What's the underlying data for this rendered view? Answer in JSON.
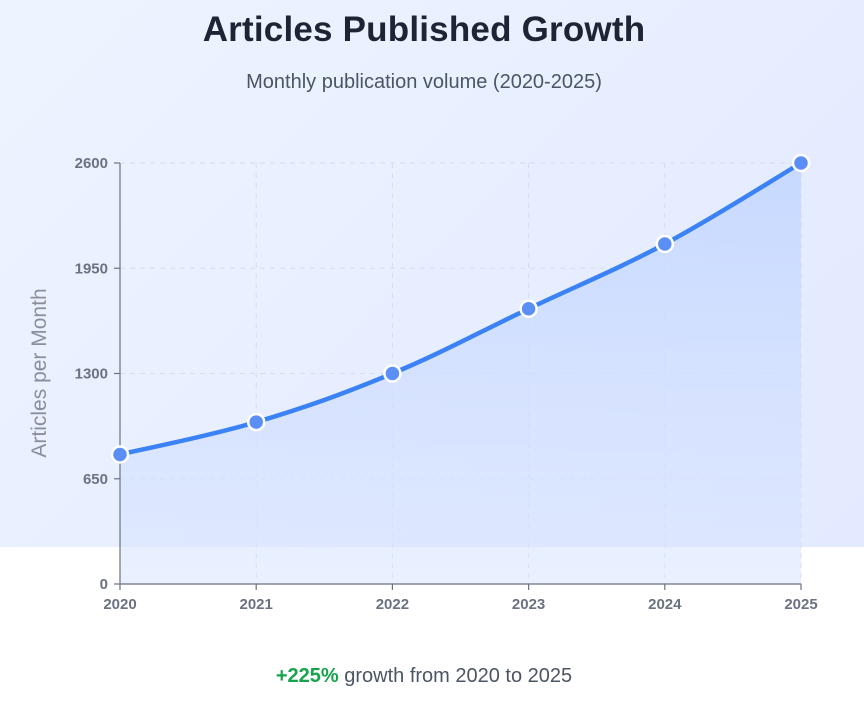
{
  "header": {
    "title": "Articles Published Growth",
    "subtitle": "Monthly publication volume (2020-2025)"
  },
  "footer": {
    "growth_value": "+225%",
    "growth_text": " growth from 2020 to 2025"
  },
  "colors": {
    "line": "#3b82f6",
    "area": "#bfd4ff",
    "point_fill": "#5b8ff5",
    "point_stroke": "#ffffff",
    "axis": "#6b7280",
    "grid": "#d7dcea",
    "growth": "#16a34a"
  },
  "chart_data": {
    "type": "area",
    "title": "Articles Published Growth",
    "subtitle": "Monthly publication volume (2020-2025)",
    "xlabel": "",
    "ylabel": "Articles per Month",
    "categories": [
      "2020",
      "2021",
      "2022",
      "2023",
      "2024",
      "2025"
    ],
    "series": [
      {
        "values": [
          800,
          1000,
          1300,
          1700,
          2100,
          2600
        ]
      }
    ],
    "y_ticks": [
      0,
      650,
      1300,
      1950,
      2600
    ],
    "ylim": [
      0,
      2600
    ],
    "grid": true,
    "legend": "none"
  }
}
